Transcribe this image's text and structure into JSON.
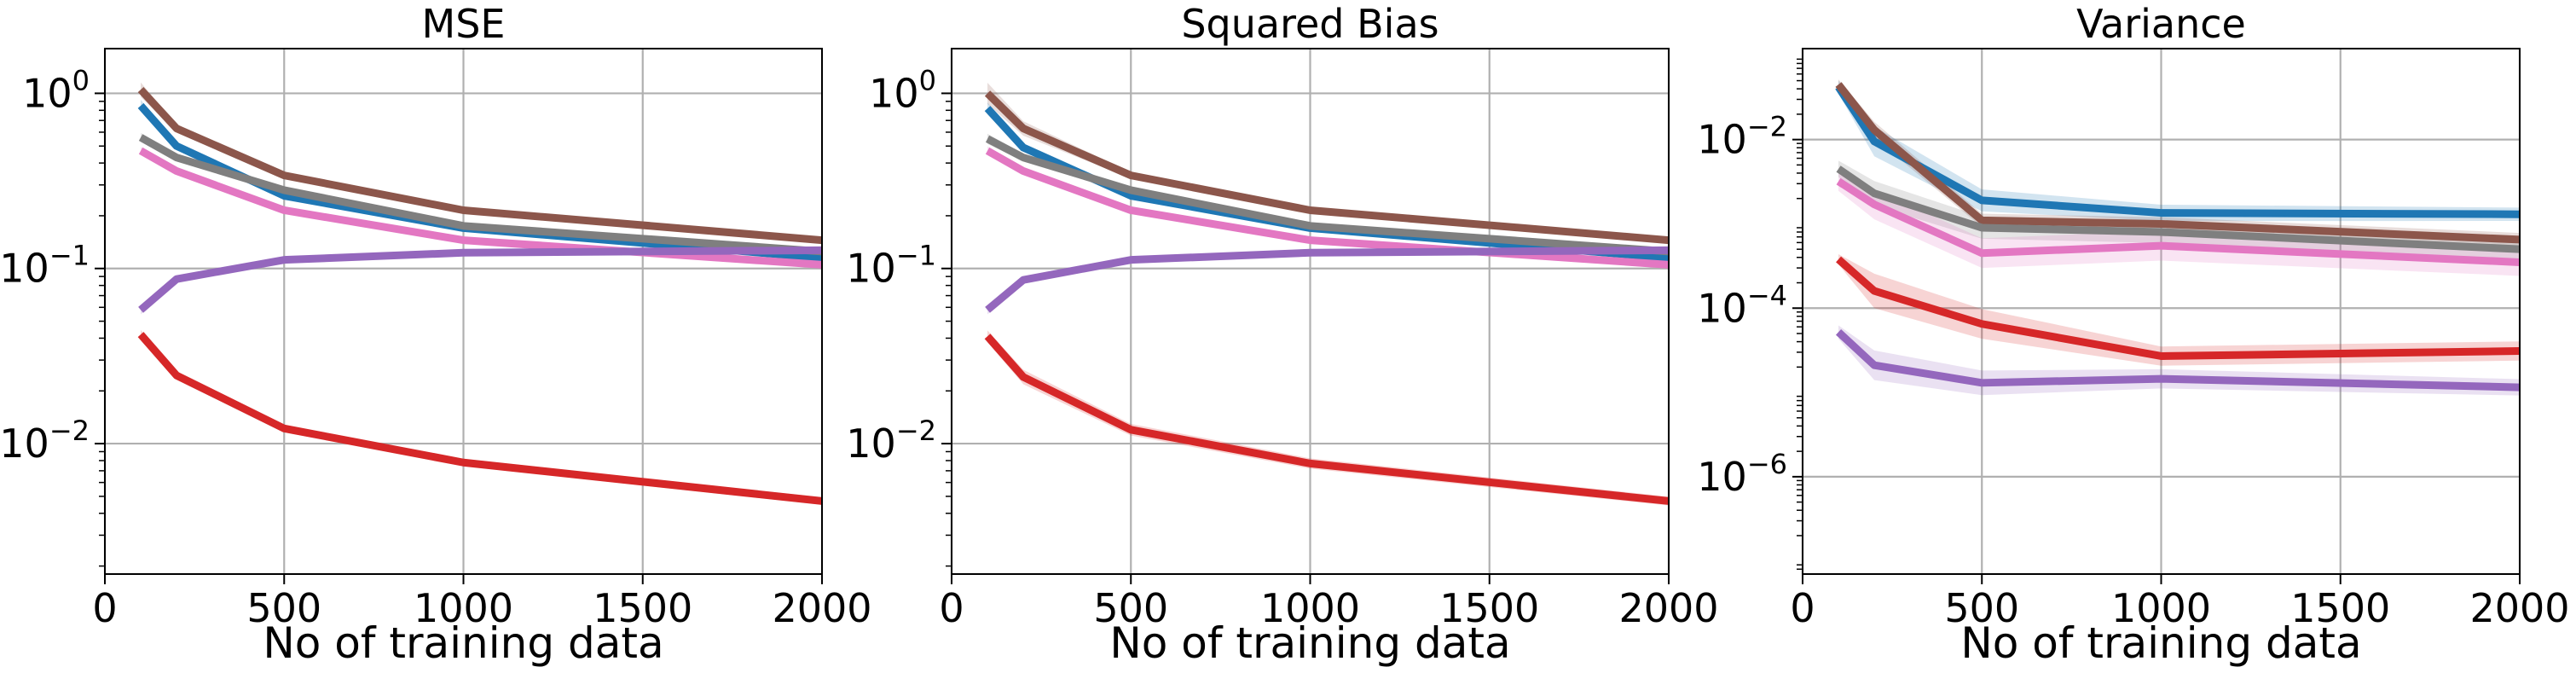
{
  "chart_data": [
    {
      "type": "line",
      "title": "MSE",
      "xlabel": "No of training data",
      "ylabel": "",
      "yscale": "log",
      "xlim": [
        0,
        2000
      ],
      "ylim": [
        0.0018,
        1.8
      ],
      "grid": true,
      "xticks": [
        0,
        500,
        1000,
        1500,
        2000
      ],
      "xtick_labels": [
        "0",
        "500",
        "1000",
        "1500",
        "2000"
      ],
      "yticks": [
        1,
        0.1,
        0.01
      ],
      "ytick_labels": [
        {
          "base": "10",
          "exp": "0"
        },
        {
          "base": "10",
          "exp": "−1"
        },
        {
          "base": "10",
          "exp": "−2"
        }
      ],
      "x": [
        100,
        200,
        500,
        1000,
        2000
      ],
      "series": [
        {
          "color": "#8c564b",
          "values": [
            1.05,
            0.63,
            0.34,
            0.215,
            0.145
          ],
          "band": [
            0.1,
            0.05,
            0.03,
            0.02,
            0.02
          ]
        },
        {
          "color": "#1f77b4",
          "values": [
            0.85,
            0.5,
            0.26,
            0.17,
            0.115
          ],
          "band": [
            0.08,
            0.05,
            0.03,
            0.02,
            0.02
          ]
        },
        {
          "color": "#7f7f7f",
          "values": [
            0.56,
            0.43,
            0.28,
            0.175,
            0.125
          ],
          "band": [
            0.06,
            0.04,
            0.03,
            0.02,
            0.02
          ]
        },
        {
          "color": "#e377c2",
          "values": [
            0.47,
            0.36,
            0.215,
            0.145,
            0.105
          ],
          "band": [
            0.05,
            0.04,
            0.03,
            0.02,
            0.02
          ]
        },
        {
          "color": "#9467bd",
          "values": [
            0.058,
            0.087,
            0.112,
            0.123,
            0.127
          ],
          "band": [
            0.06,
            0.04,
            0.03,
            0.02,
            0.02
          ]
        },
        {
          "color": "#d62728",
          "values": [
            0.042,
            0.0245,
            0.0122,
            0.0078,
            0.0047
          ],
          "band": [
            0.06,
            0.05,
            0.05,
            0.05,
            0.05
          ]
        }
      ]
    },
    {
      "type": "line",
      "title": "Squared Bias",
      "xlabel": "No of training data",
      "ylabel": "",
      "yscale": "log",
      "xlim": [
        0,
        2000
      ],
      "ylim": [
        0.0018,
        1.8
      ],
      "grid": true,
      "xticks": [
        0,
        500,
        1000,
        1500,
        2000
      ],
      "xtick_labels": [
        "0",
        "500",
        "1000",
        "1500",
        "2000"
      ],
      "yticks": [
        1,
        0.1,
        0.01
      ],
      "ytick_labels": [
        {
          "base": "10",
          "exp": "0"
        },
        {
          "base": "10",
          "exp": "−1"
        },
        {
          "base": "10",
          "exp": "−2"
        }
      ],
      "x": [
        100,
        200,
        500,
        1000,
        2000
      ],
      "series": [
        {
          "color": "#8c564b",
          "values": [
            1.0,
            0.63,
            0.34,
            0.215,
            0.145
          ],
          "band": [
            0.15,
            0.1,
            0.04,
            0.03,
            0.03
          ]
        },
        {
          "color": "#1f77b4",
          "values": [
            0.82,
            0.49,
            0.26,
            0.17,
            0.115
          ],
          "band": [
            0.08,
            0.05,
            0.03,
            0.02,
            0.02
          ]
        },
        {
          "color": "#7f7f7f",
          "values": [
            0.55,
            0.43,
            0.28,
            0.175,
            0.125
          ],
          "band": [
            0.07,
            0.05,
            0.03,
            0.02,
            0.02
          ]
        },
        {
          "color": "#e377c2",
          "values": [
            0.47,
            0.36,
            0.215,
            0.145,
            0.105
          ],
          "band": [
            0.06,
            0.05,
            0.03,
            0.02,
            0.02
          ]
        },
        {
          "color": "#9467bd",
          "values": [
            0.058,
            0.086,
            0.112,
            0.123,
            0.127
          ],
          "band": [
            0.06,
            0.04,
            0.03,
            0.02,
            0.02
          ]
        },
        {
          "color": "#d62728",
          "values": [
            0.041,
            0.024,
            0.012,
            0.0077,
            0.0047
          ],
          "band": [
            0.08,
            0.1,
            0.08,
            0.07,
            0.06
          ]
        }
      ]
    },
    {
      "type": "line",
      "title": "Variance",
      "xlabel": "No of training data",
      "ylabel": "",
      "yscale": "log",
      "xlim": [
        0,
        2000
      ],
      "ylim": [
        7e-08,
        0.12
      ],
      "grid": true,
      "xticks": [
        0,
        500,
        1000,
        1500,
        2000
      ],
      "xtick_labels": [
        "0",
        "500",
        "1000",
        "1500",
        "2000"
      ],
      "yticks": [
        0.01,
        0.0001,
        1e-06
      ],
      "ytick_labels": [
        {
          "base": "10",
          "exp": "−2"
        },
        {
          "base": "10",
          "exp": "−4"
        },
        {
          "base": "10",
          "exp": "−6"
        }
      ],
      "x": [
        100,
        200,
        500,
        1000,
        2000
      ],
      "series": [
        {
          "color": "#1f77b4",
          "values": [
            0.042,
            0.0095,
            0.0019,
            0.00135,
            0.0013
          ],
          "band": [
            0.2,
            0.5,
            0.35,
            0.25,
            0.2
          ]
        },
        {
          "color": "#8c564b",
          "values": [
            0.045,
            0.013,
            0.0011,
            0.001,
            0.00065
          ],
          "band": [
            0.15,
            0.25,
            0.2,
            0.2,
            0.2
          ]
        },
        {
          "color": "#7f7f7f",
          "values": [
            0.0045,
            0.0023,
            0.0009,
            0.0008,
            0.0005
          ],
          "band": [
            0.25,
            0.4,
            0.35,
            0.35,
            0.3
          ]
        },
        {
          "color": "#e377c2",
          "values": [
            0.0032,
            0.0017,
            0.00045,
            0.00055,
            0.00035
          ],
          "band": [
            0.3,
            0.5,
            0.5,
            0.5,
            0.45
          ]
        },
        {
          "color": "#d62728",
          "values": [
            0.00038,
            0.00016,
            6.5e-05,
            2.7e-05,
            3.1e-05
          ],
          "band": [
            0.15,
            0.6,
            0.5,
            0.3,
            0.3
          ]
        },
        {
          "color": "#9467bd",
          "values": [
            5.2e-05,
            2.1e-05,
            1.3e-05,
            1.45e-05,
            1.15e-05
          ],
          "band": [
            0.2,
            0.5,
            0.4,
            0.3,
            0.25
          ]
        }
      ]
    }
  ]
}
